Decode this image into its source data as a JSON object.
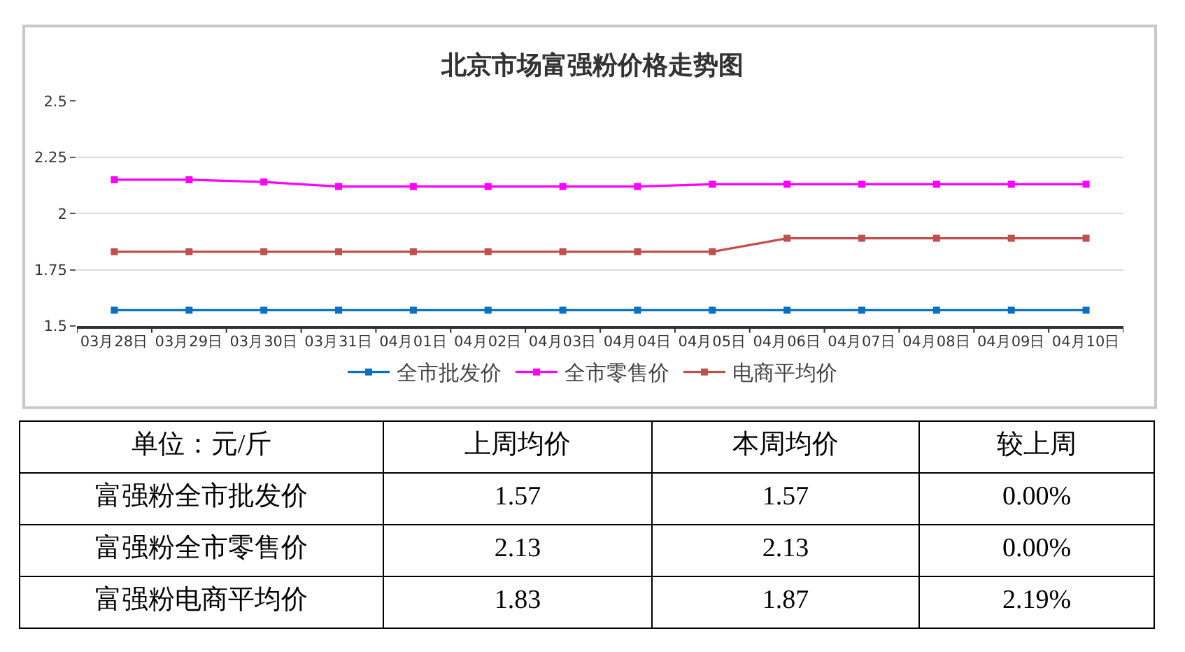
{
  "chart_data": [
    {
      "type": "line",
      "title": "北京市场富强粉价格走势图",
      "categories": [
        "03月28日",
        "03月29日",
        "03月30日",
        "03月31日",
        "04月01日",
        "04月02日",
        "04月03日",
        "04月04日",
        "04月05日",
        "04月06日",
        "04月07日",
        "04月08日",
        "04月09日",
        "04月10日"
      ],
      "series": [
        {
          "name": "全市批发价",
          "color": "#0a70c4",
          "values": [
            1.57,
            1.57,
            1.57,
            1.57,
            1.57,
            1.57,
            1.57,
            1.57,
            1.57,
            1.57,
            1.57,
            1.57,
            1.57,
            1.57
          ]
        },
        {
          "name": "全市零售价",
          "color": "#ff00ff",
          "values": [
            2.15,
            2.15,
            2.14,
            2.12,
            2.12,
            2.12,
            2.12,
            2.12,
            2.13,
            2.13,
            2.13,
            2.13,
            2.13,
            2.13
          ]
        },
        {
          "name": "电商平均价",
          "color": "#c0504d",
          "values": [
            1.83,
            1.83,
            1.83,
            1.83,
            1.83,
            1.83,
            1.83,
            1.83,
            1.83,
            1.89,
            1.89,
            1.89,
            1.89,
            1.89
          ]
        }
      ],
      "ylim": [
        1.5,
        2.5
      ],
      "yticks": [
        1.5,
        1.75,
        2,
        2.25,
        2.5
      ],
      "grid": "y",
      "legend": "bottom",
      "marker": "square",
      "line_style": "solid"
    },
    {
      "type": "other",
      "ylabel": "单位：元/斤",
      "categories": [
        "上周均价",
        "本周均价",
        "较上周"
      ],
      "y_categories": [
        "富强粉全市批发价",
        "富强粉全市零售价",
        "富强粉电商平均价"
      ],
      "cell_labels": [
        [
          "1.57",
          "1.57",
          "0.00%"
        ],
        [
          "2.13",
          "2.13",
          "0.00%"
        ],
        [
          "1.83",
          "1.87",
          "2.19%"
        ]
      ]
    }
  ]
}
